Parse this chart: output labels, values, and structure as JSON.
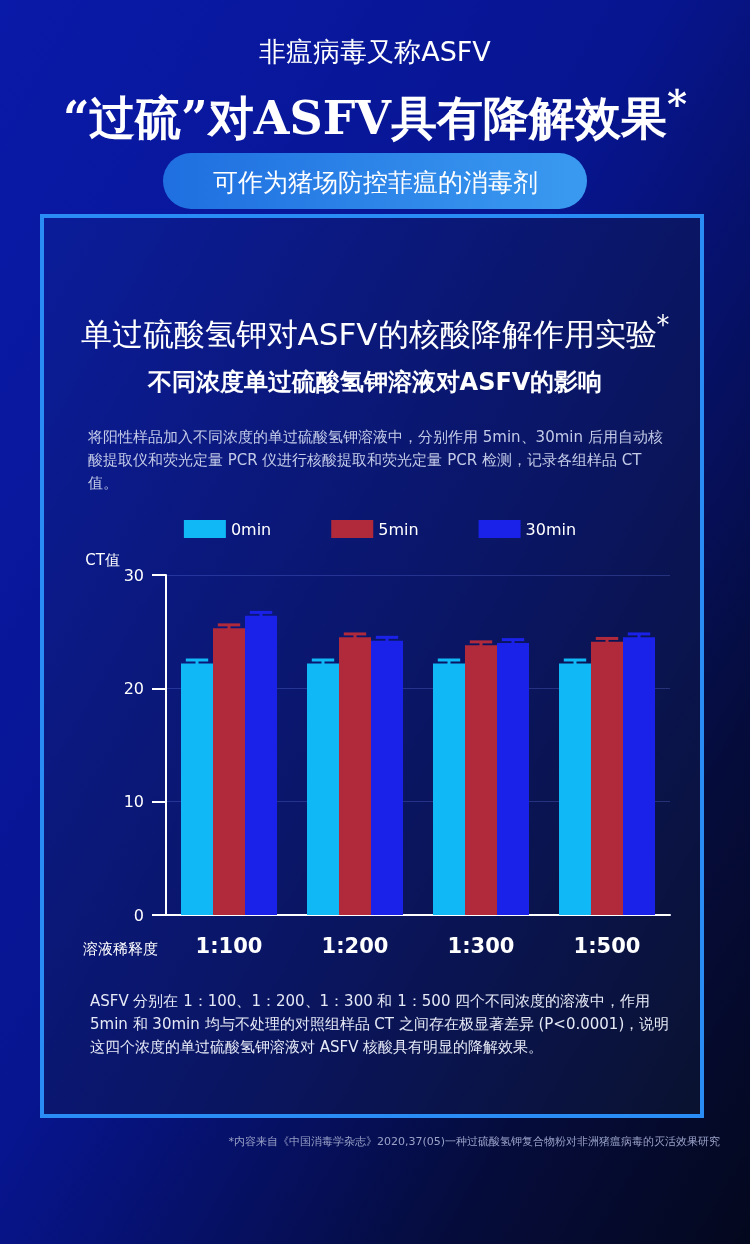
{
  "chart_data": {
    "type": "bar",
    "title": "单过硫酸氢钾对ASFV的核酸降解作用实验$^{*}$",
    "subtitle": "不同浓度单过硫酸氢钾溶液对ASFV的影响",
    "xlabel": "溶液稀释度",
    "ylabel": "CT值",
    "annotations": [
      "非瘟病毒又称ASFV",
      "“过硫”对ASFV具有降解效果$^{*}$",
      "可作为猪场防控菲瘟的消毒剂",
      "将阳性样品加入不同浓度的单过硫酸氢钾溶液中，分别作用 5min、30min 后用自动核酸提取仪和荧光定量 PCR 仪进行核酸提取和荧光定量 PCR 检测，记录各组样品 CT 值。",
      "ASFV 分别在 1：100、1：200、1：300 和 1：500 四个不同浓度的溶液中，作用 5min 和 30min 均与不处理的对照组样品 CT 之间存在极显著差异 (P<0.0001)，说明这四个浓度的单过硫酸氢钾溶液对 ASFV 核酸具有明显的降解效果。",
      "*内容来自《中国消毒学杂志》2020,37(05)一种过硫酸氢钾复合物粉对非洲猪瘟病毒的灭活效果研究"
    ],
    "categories": [
      "1:100",
      "1:200",
      "1:300",
      "1:500"
    ],
    "series": [
      {
        "name": "0min",
        "color": "#10b8f6",
        "values": [
          22.2,
          22.2,
          22.2,
          22.2
        ],
        "errors": [
          0.3,
          0.3,
          0.3,
          0.3
        ]
      },
      {
        "name": "5min",
        "color": "#b02a3c",
        "values": [
          25.3,
          24.5,
          23.8,
          24.1
        ],
        "errors": [
          0.3,
          0.3,
          0.3,
          0.3
        ]
      },
      {
        "name": "30min",
        "color": "#1a22ea",
        "values": [
          26.4,
          24.2,
          24.0,
          24.5
        ],
        "errors": [
          0.3,
          0.3,
          0.3,
          0.3
        ]
      }
    ],
    "ylim": [
      0,
      30
    ],
    "yticks": [
      0,
      10,
      20,
      30
    ],
    "grid": "y",
    "legend": "top"
  }
}
